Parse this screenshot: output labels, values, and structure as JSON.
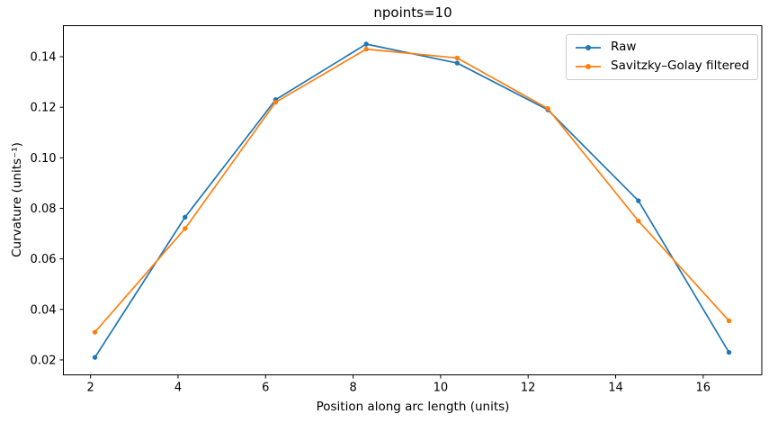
{
  "figure": {
    "title": "npoints=10"
  },
  "chart_data": {
    "type": "line",
    "title": "npoints=10",
    "xlabel": "Position along arc length (units)",
    "ylabel": "Curvature (units⁻¹)",
    "x": [
      2.1,
      4.16,
      6.23,
      8.3,
      10.38,
      12.45,
      14.52,
      16.59
    ],
    "series": [
      {
        "name": "Raw",
        "color": "#1f77b4",
        "marker": "circle",
        "values": [
          0.021,
          0.0765,
          0.123,
          0.145,
          0.1375,
          0.119,
          0.083,
          0.023
        ]
      },
      {
        "name": "Savitzky–Golay filtered",
        "color": "#ff7f0e",
        "marker": "circle",
        "values": [
          0.031,
          0.072,
          0.122,
          0.143,
          0.1395,
          0.1195,
          0.075,
          0.0355
        ]
      }
    ],
    "xticks": [
      2,
      4,
      6,
      8,
      10,
      12,
      14,
      16
    ],
    "yticks": [
      0.02,
      0.04,
      0.06,
      0.08,
      0.1,
      0.12,
      0.14
    ],
    "xlim": [
      1.38,
      17.34
    ],
    "ylim": [
      0.0141,
      0.1523
    ],
    "grid": false,
    "legend_position": "upper right"
  }
}
